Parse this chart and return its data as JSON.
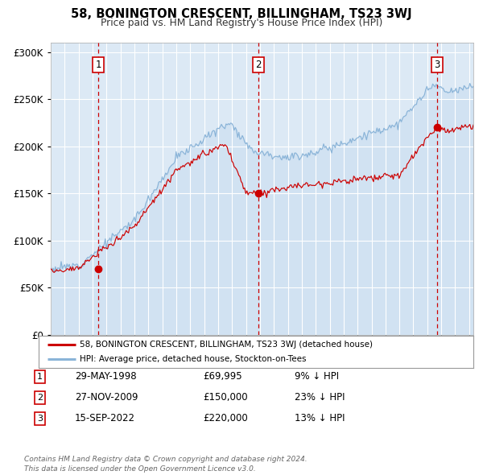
{
  "title": "58, BONINGTON CRESCENT, BILLINGHAM, TS23 3WJ",
  "subtitle": "Price paid vs. HM Land Registry's House Price Index (HPI)",
  "background_color": "#ffffff",
  "plot_bg_color": "#dce9f5",
  "hpi_color": "#8ab4d8",
  "price_color": "#cc0000",
  "purchases": [
    {
      "date_num": 1998.41,
      "price": 69995,
      "label": "1"
    },
    {
      "date_num": 2009.9,
      "price": 150000,
      "label": "2"
    },
    {
      "date_num": 2022.71,
      "price": 220000,
      "label": "3"
    }
  ],
  "legend_label_price": "58, BONINGTON CRESCENT, BILLINGHAM, TS23 3WJ (detached house)",
  "legend_label_hpi": "HPI: Average price, detached house, Stockton-on-Tees",
  "table_rows": [
    {
      "num": "1",
      "date": "29-MAY-1998",
      "price": "£69,995",
      "note": "9% ↓ HPI"
    },
    {
      "num": "2",
      "date": "27-NOV-2009",
      "price": "£150,000",
      "note": "23% ↓ HPI"
    },
    {
      "num": "3",
      "date": "15-SEP-2022",
      "price": "£220,000",
      "note": "13% ↓ HPI"
    }
  ],
  "footer": "Contains HM Land Registry data © Crown copyright and database right 2024.\nThis data is licensed under the Open Government Licence v3.0.",
  "ylim": [
    0,
    310000
  ],
  "xlim_start": 1995.0,
  "xlim_end": 2025.3,
  "yticks": [
    0,
    50000,
    100000,
    150000,
    200000,
    250000,
    300000
  ],
  "ytick_labels": [
    "£0",
    "£50K",
    "£100K",
    "£150K",
    "£200K",
    "£250K",
    "£300K"
  ]
}
